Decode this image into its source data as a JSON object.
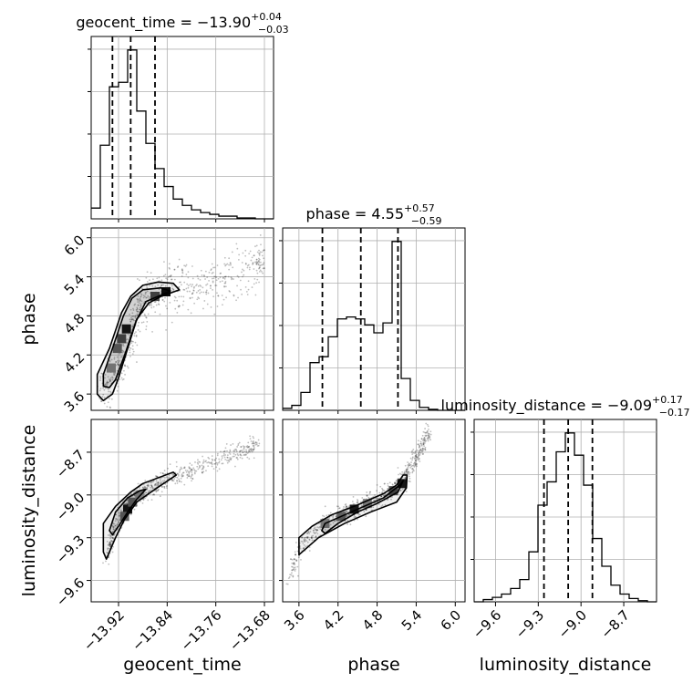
{
  "chart_data": {
    "type": "corner",
    "parameters": [
      "geocent_time",
      "phase",
      "luminosity_distance"
    ],
    "axis_labels": {
      "x": [
        "geocent_time",
        "phase",
        "luminosity_distance"
      ],
      "y": [
        "phase",
        "luminosity_distance"
      ]
    },
    "titles": [
      {
        "name": "geocent_time",
        "eq": " = ",
        "median": "−13.90",
        "plus": "+0.04",
        "minus": "−0.03"
      },
      {
        "name": "phase",
        "eq": " = ",
        "median": "4.55",
        "plus": "+0.57",
        "minus": "−0.59"
      },
      {
        "name": "luminosity_distance",
        "eq": " = ",
        "median": "−9.09",
        "plus": "+0.17",
        "minus": "−0.17"
      }
    ],
    "ranges": {
      "geocent_time": [
        -13.965,
        -13.665
      ],
      "phase": [
        3.35,
        6.15
      ],
      "luminosity_distance": [
        -9.75,
        -8.47
      ]
    },
    "ticks": {
      "geocent_time": [
        -13.92,
        -13.84,
        -13.76,
        -13.68
      ],
      "phase": [
        3.6,
        4.2,
        4.8,
        5.4,
        6.0
      ],
      "luminosity_distance": [
        -9.6,
        -9.3,
        -9.0,
        -8.7
      ]
    },
    "tick_labels": {
      "geocent_time": [
        "−13.92",
        "−13.84",
        "−13.76",
        "−13.68"
      ],
      "phase": [
        "3.6",
        "4.2",
        "4.8",
        "5.4",
        "6.0"
      ],
      "luminosity_distance": [
        "−9.6",
        "−9.3",
        "−9.0",
        "−8.7"
      ]
    },
    "quantiles": {
      "geocent_time": [
        -13.93,
        -13.9,
        -13.86
      ],
      "phase": [
        3.96,
        4.55,
        5.12
      ],
      "luminosity_distance": [
        -9.26,
        -9.09,
        -8.92
      ]
    },
    "histograms": {
      "geocent_time": {
        "bins": [
          -13.965,
          -13.95,
          -13.935,
          -13.92,
          -13.905,
          -13.89,
          -13.875,
          -13.86,
          -13.845,
          -13.83,
          -13.815,
          -13.8,
          -13.785,
          -13.77,
          -13.755,
          -13.74,
          -13.725,
          -13.71,
          -13.695,
          -13.68,
          -13.665
        ],
        "counts": [
          12,
          82,
          147,
          152,
          188,
          120,
          84,
          56,
          36,
          22,
          15,
          10,
          7,
          5,
          3,
          3,
          1,
          1,
          0,
          0
        ]
      },
      "phase": {
        "bins": [
          3.35,
          3.49,
          3.63,
          3.77,
          3.91,
          4.05,
          4.19,
          4.33,
          4.47,
          4.61,
          4.75,
          4.89,
          5.03,
          5.17,
          5.31,
          5.45,
          5.59,
          5.73,
          5.87,
          6.01,
          6.15
        ],
        "counts": [
          2,
          5,
          18,
          48,
          54,
          74,
          92,
          94,
          92,
          86,
          78,
          88,
          170,
          32,
          10,
          3,
          1,
          0,
          0,
          0
        ]
      },
      "luminosity_distance": {
        "bins": [
          -9.75,
          -9.686,
          -9.622,
          -9.558,
          -9.494,
          -9.43,
          -9.366,
          -9.302,
          -9.238,
          -9.174,
          -9.11,
          -9.046,
          -8.982,
          -8.918,
          -8.854,
          -8.79,
          -8.726,
          -8.662,
          -8.598,
          -8.534,
          -8.47
        ],
        "counts": [
          0,
          2,
          4,
          7,
          12,
          20,
          45,
          87,
          108,
          135,
          152,
          132,
          105,
          57,
          32,
          15,
          7,
          3,
          1,
          0
        ]
      }
    },
    "scatter_sigma": {
      "phase|geocent_time": 0.09,
      "luminosity_distance|geocent_time": 0.035,
      "luminosity_distance|phase": 0.035
    },
    "ridges": {
      "phase|geocent_time": [
        [
          -13.95,
          3.6
        ],
        [
          -13.935,
          3.8
        ],
        [
          -13.92,
          4.05
        ],
        [
          -13.905,
          4.4
        ],
        [
          -13.895,
          4.7
        ],
        [
          -13.885,
          4.95
        ],
        [
          -13.87,
          5.1
        ],
        [
          -13.85,
          5.18
        ],
        [
          -13.82,
          5.22
        ],
        [
          -13.78,
          5.3
        ],
        [
          -13.74,
          5.4
        ],
        [
          -13.7,
          5.55
        ],
        [
          -13.68,
          5.65
        ]
      ],
      "luminosity_distance|geocent_time": [
        [
          -13.94,
          -9.45
        ],
        [
          -13.925,
          -9.22
        ],
        [
          -13.91,
          -9.1
        ],
        [
          -13.895,
          -9.02
        ],
        [
          -13.875,
          -8.97
        ],
        [
          -13.855,
          -8.92
        ],
        [
          -13.835,
          -8.88
        ],
        [
          -13.8,
          -8.84
        ],
        [
          -13.76,
          -8.77
        ],
        [
          -13.72,
          -8.7
        ],
        [
          -13.69,
          -8.63
        ]
      ],
      "luminosity_distance|phase": [
        [
          3.45,
          -9.6
        ],
        [
          3.6,
          -9.36
        ],
        [
          3.8,
          -9.28
        ],
        [
          4.0,
          -9.2
        ],
        [
          4.2,
          -9.15
        ],
        [
          4.4,
          -9.11
        ],
        [
          4.6,
          -9.07
        ],
        [
          4.8,
          -9.03
        ],
        [
          5.0,
          -8.98
        ],
        [
          5.1,
          -8.94
        ],
        [
          5.2,
          -8.9
        ],
        [
          5.3,
          -8.82
        ],
        [
          5.4,
          -8.74
        ],
        [
          5.5,
          -8.65
        ],
        [
          5.6,
          -8.56
        ]
      ]
    },
    "contours": {
      "phase|geocent_time": [
        [
          [
            -13.955,
            3.6
          ],
          [
            -13.955,
            3.9
          ],
          [
            -13.935,
            4.3
          ],
          [
            -13.915,
            4.85
          ],
          [
            -13.9,
            5.1
          ],
          [
            -13.88,
            5.27
          ],
          [
            -13.855,
            5.32
          ],
          [
            -13.83,
            5.3
          ],
          [
            -13.82,
            5.2
          ],
          [
            -13.85,
            5.1
          ],
          [
            -13.87,
            5.0
          ],
          [
            -13.89,
            4.75
          ],
          [
            -13.905,
            4.3
          ],
          [
            -13.92,
            3.85
          ],
          [
            -13.93,
            3.6
          ],
          [
            -13.945,
            3.5
          ]
        ],
        [
          [
            -13.945,
            3.72
          ],
          [
            -13.945,
            3.9
          ],
          [
            -13.93,
            4.3
          ],
          [
            -13.912,
            4.8
          ],
          [
            -13.898,
            5.07
          ],
          [
            -13.88,
            5.2
          ],
          [
            -13.85,
            5.23
          ],
          [
            -13.835,
            5.18
          ],
          [
            -13.855,
            5.1
          ],
          [
            -13.875,
            5.02
          ],
          [
            -13.892,
            4.7
          ],
          [
            -13.908,
            4.25
          ],
          [
            -13.925,
            3.82
          ],
          [
            -13.935,
            3.7
          ]
        ]
      ],
      "luminosity_distance|geocent_time": [
        [
          [
            -13.945,
            -9.4
          ],
          [
            -13.945,
            -9.2
          ],
          [
            -13.925,
            -9.08
          ],
          [
            -13.9,
            -8.98
          ],
          [
            -13.88,
            -8.92
          ],
          [
            -13.855,
            -8.88
          ],
          [
            -13.83,
            -8.84
          ],
          [
            -13.825,
            -8.86
          ],
          [
            -13.86,
            -8.96
          ],
          [
            -13.89,
            -9.05
          ],
          [
            -13.91,
            -9.17
          ],
          [
            -13.925,
            -9.3
          ],
          [
            -13.94,
            -9.45
          ]
        ],
        [
          [
            -13.935,
            -9.25
          ],
          [
            -13.925,
            -9.12
          ],
          [
            -13.905,
            -9.02
          ],
          [
            -13.885,
            -8.97
          ],
          [
            -13.875,
            -8.96
          ],
          [
            -13.89,
            -9.03
          ],
          [
            -13.905,
            -9.12
          ],
          [
            -13.92,
            -9.22
          ],
          [
            -13.93,
            -9.28
          ]
        ]
      ],
      "luminosity_distance|phase": [
        [
          [
            3.6,
            -9.42
          ],
          [
            3.6,
            -9.3
          ],
          [
            3.8,
            -9.22
          ],
          [
            4.1,
            -9.14
          ],
          [
            4.5,
            -9.07
          ],
          [
            4.9,
            -8.99
          ],
          [
            5.1,
            -8.93
          ],
          [
            5.2,
            -8.86
          ],
          [
            5.26,
            -8.86
          ],
          [
            5.25,
            -8.95
          ],
          [
            5.1,
            -9.05
          ],
          [
            4.7,
            -9.12
          ],
          [
            4.3,
            -9.2
          ],
          [
            3.9,
            -9.3
          ],
          [
            3.7,
            -9.38
          ]
        ],
        [
          [
            3.95,
            -9.25
          ],
          [
            4.0,
            -9.2
          ],
          [
            4.3,
            -9.14
          ],
          [
            4.6,
            -9.08
          ],
          [
            4.9,
            -9.02
          ],
          [
            5.15,
            -8.93
          ],
          [
            5.2,
            -8.9
          ],
          [
            5.12,
            -8.98
          ],
          [
            4.8,
            -9.06
          ],
          [
            4.5,
            -9.12
          ],
          [
            4.2,
            -9.2
          ],
          [
            4.0,
            -9.27
          ]
        ]
      ]
    },
    "density_blocks": {
      "phase|geocent_time": [
        [
          -13.922,
          4.3,
          0.6
        ],
        [
          -13.907,
          4.6,
          0.9
        ],
        [
          -13.915,
          4.45,
          0.7
        ],
        [
          -13.842,
          5.17,
          0.95
        ],
        [
          -13.86,
          5.1,
          0.7
        ],
        [
          -13.932,
          4.0,
          0.45
        ]
      ],
      "luminosity_distance|geocent_time": [
        [
          -13.905,
          -9.1,
          0.9
        ],
        [
          -13.91,
          -9.15,
          0.6
        ],
        [
          -13.897,
          -9.05,
          0.6
        ],
        [
          -13.885,
          -9.0,
          0.45
        ]
      ],
      "luminosity_distance|phase": [
        [
          4.45,
          -9.1,
          0.9
        ],
        [
          4.25,
          -9.15,
          0.6
        ],
        [
          5.05,
          -8.97,
          0.7
        ],
        [
          5.18,
          -8.92,
          0.9
        ],
        [
          4.0,
          -9.2,
          0.5
        ],
        [
          4.65,
          -9.06,
          0.5
        ]
      ]
    }
  }
}
